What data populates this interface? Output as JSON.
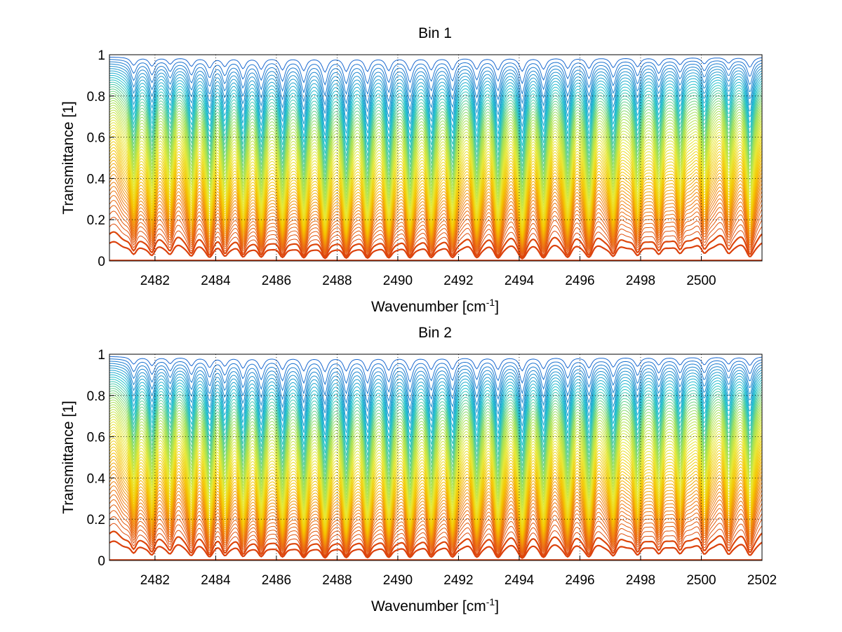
{
  "chart_data": [
    {
      "type": "line",
      "title": "Bin 1",
      "xlabel": "Wavenumber [cm",
      "xlabel_sup": "-1",
      "xlabel_end": "]",
      "ylabel": "Transmittance [1]",
      "xlim": [
        2480.5,
        2502
      ],
      "ylim": [
        0,
        1
      ],
      "xticks": [
        2482,
        2484,
        2486,
        2488,
        2490,
        2492,
        2494,
        2496,
        2498,
        2500
      ],
      "yticks": [
        0,
        0.2,
        0.4,
        0.6,
        0.8,
        1
      ],
      "ytick_labels": [
        "0",
        "0.2",
        "0.4",
        "0.6",
        "0.8",
        "1"
      ],
      "grid": true,
      "series_count": 60,
      "line_centers": [
        2481.3,
        2481.9,
        2482.5,
        2483.2,
        2483.8,
        2484.3,
        2484.9,
        2485.5,
        2486.2,
        2486.9,
        2487.6,
        2488.3,
        2489.0,
        2489.7,
        2490.4,
        2491.1,
        2491.8,
        2492.6,
        2493.3,
        2494.1,
        2494.8,
        2495.6,
        2496.3,
        2497.1,
        2497.9,
        2498.6,
        2499.3,
        2500.1,
        2500.9,
        2501.6
      ],
      "line_strengths": [
        0.55,
        0.6,
        0.45,
        0.6,
        0.7,
        0.6,
        0.75,
        0.8,
        0.85,
        0.9,
        1.0,
        0.95,
        0.95,
        0.9,
        0.9,
        0.85,
        0.85,
        0.8,
        0.85,
        0.95,
        0.8,
        0.75,
        0.75,
        0.7,
        0.65,
        0.55,
        0.5,
        0.45,
        0.4,
        0.7
      ]
    },
    {
      "type": "line",
      "title": "Bin 2",
      "xlabel": "Wavenumber [cm",
      "xlabel_sup": "-1",
      "xlabel_end": "]",
      "ylabel": "Transmittance [1]",
      "xlim": [
        2480.5,
        2502
      ],
      "ylim": [
        0,
        1
      ],
      "xticks": [
        2482,
        2484,
        2486,
        2488,
        2490,
        2492,
        2494,
        2496,
        2498,
        2500,
        2502
      ],
      "yticks": [
        0,
        0.2,
        0.4,
        0.6,
        0.8,
        1
      ],
      "ytick_labels": [
        "0",
        "0.2",
        "0.4",
        "0.6",
        "0.8",
        "1"
      ],
      "grid": true,
      "series_count": 60,
      "line_centers": [
        2481.3,
        2481.9,
        2482.5,
        2483.2,
        2483.8,
        2484.3,
        2484.9,
        2485.5,
        2486.2,
        2486.9,
        2487.6,
        2488.3,
        2489.0,
        2489.7,
        2490.4,
        2491.1,
        2491.8,
        2492.6,
        2493.3,
        2494.1,
        2494.8,
        2495.6,
        2496.3,
        2497.1,
        2497.9,
        2498.6,
        2499.3,
        2500.1,
        2500.9,
        2501.6
      ],
      "line_strengths": [
        0.5,
        0.6,
        0.45,
        0.6,
        0.7,
        0.6,
        0.75,
        0.8,
        0.85,
        0.95,
        1.0,
        0.95,
        0.95,
        0.9,
        0.9,
        0.85,
        0.85,
        0.8,
        0.85,
        0.95,
        0.8,
        0.75,
        0.75,
        0.7,
        0.65,
        0.55,
        0.55,
        0.55,
        0.5,
        0.6
      ]
    }
  ],
  "colors": {
    "axis": "#000000",
    "grid": "#000000",
    "colormap": [
      "#d93a0b",
      "#ee7a10",
      "#f5c400",
      "#e8e836",
      "#9ee05a",
      "#1fc0d0",
      "#1a5fd0"
    ]
  }
}
